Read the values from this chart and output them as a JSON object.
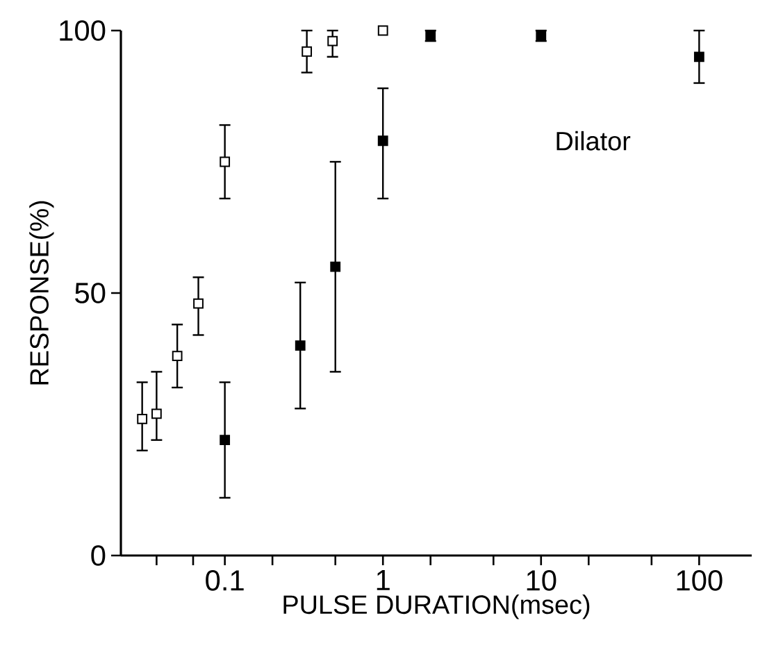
{
  "chart_data": {
    "type": "scatter",
    "xlabel": "PULSE DURATION(msec)",
    "ylabel": "RESPONSE(%)",
    "annotations": [
      "Dilator"
    ],
    "log": "x",
    "marker": "square",
    "xlim": [
      0.022,
      215
    ],
    "ylim": [
      0,
      100
    ],
    "xticks": [
      {
        "value": 0.037,
        "label": null
      },
      {
        "value": 0.063,
        "label": null
      },
      0.1,
      {
        "value": 0.2,
        "label": null
      },
      {
        "value": 0.5,
        "label": null
      },
      1,
      {
        "value": 2,
        "label": null
      },
      {
        "value": 5,
        "label": null
      },
      10,
      {
        "value": 20,
        "label": null
      },
      {
        "value": 50,
        "label": null
      },
      100
    ],
    "yticks": [
      0,
      50,
      100
    ],
    "series": [
      {
        "color": "#ffffff",
        "x": [
          0.03,
          0.037,
          0.05,
          0.068,
          0.1,
          0.33,
          0.48,
          1
        ],
        "values": [
          26,
          27,
          38,
          48,
          75,
          96,
          98,
          100
        ],
        "errors": [
          [
            20,
            33
          ],
          [
            22,
            35
          ],
          [
            32,
            44
          ],
          [
            42,
            53
          ],
          [
            68,
            82
          ],
          [
            92,
            100
          ],
          [
            95,
            100
          ],
          null
        ]
      },
      {
        "color": "#000000",
        "x": [
          0.1,
          0.3,
          0.5,
          1,
          2,
          10,
          100
        ],
        "values": [
          22,
          40,
          55,
          79,
          99,
          99,
          95
        ],
        "errors": [
          [
            11,
            33
          ],
          [
            28,
            52
          ],
          [
            35,
            75
          ],
          [
            68,
            89
          ],
          [
            98,
            100
          ],
          [
            98,
            100
          ],
          [
            90,
            100
          ]
        ]
      }
    ]
  }
}
